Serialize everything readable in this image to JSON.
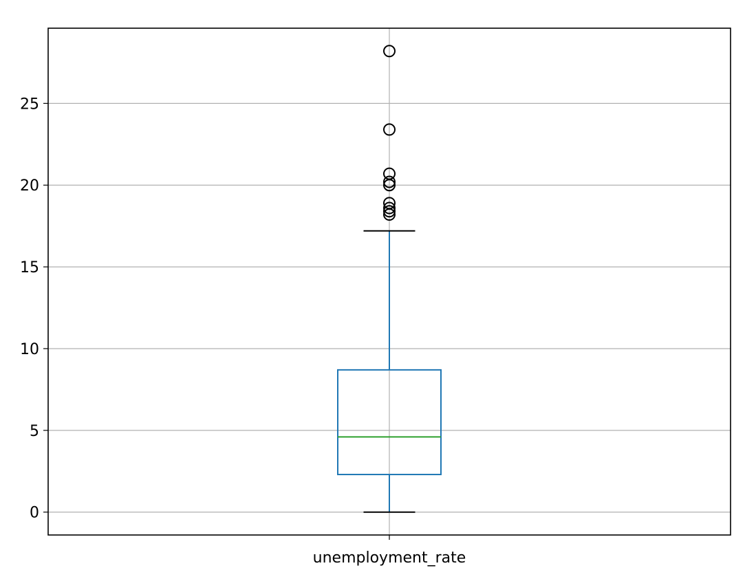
{
  "chart_data": {
    "type": "box",
    "categories": [
      "unemployment_rate"
    ],
    "series": [
      {
        "whisker_low": 0.0,
        "q1": 2.3,
        "median": 4.6,
        "q3": 8.7,
        "whisker_high": 17.2,
        "fliers": [
          18.2,
          18.4,
          18.6,
          18.9,
          20.0,
          20.2,
          20.7,
          23.4,
          28.2
        ]
      }
    ],
    "ylim": [
      -1.4,
      29.6
    ],
    "yticks": [
      0,
      5,
      10,
      15,
      20,
      25
    ],
    "grid": true,
    "colors": {
      "box": "#1f77b4",
      "median": "#2ca02c",
      "caps": "#000000",
      "fliers": "#000000",
      "grid": "#b0b0b0"
    }
  }
}
